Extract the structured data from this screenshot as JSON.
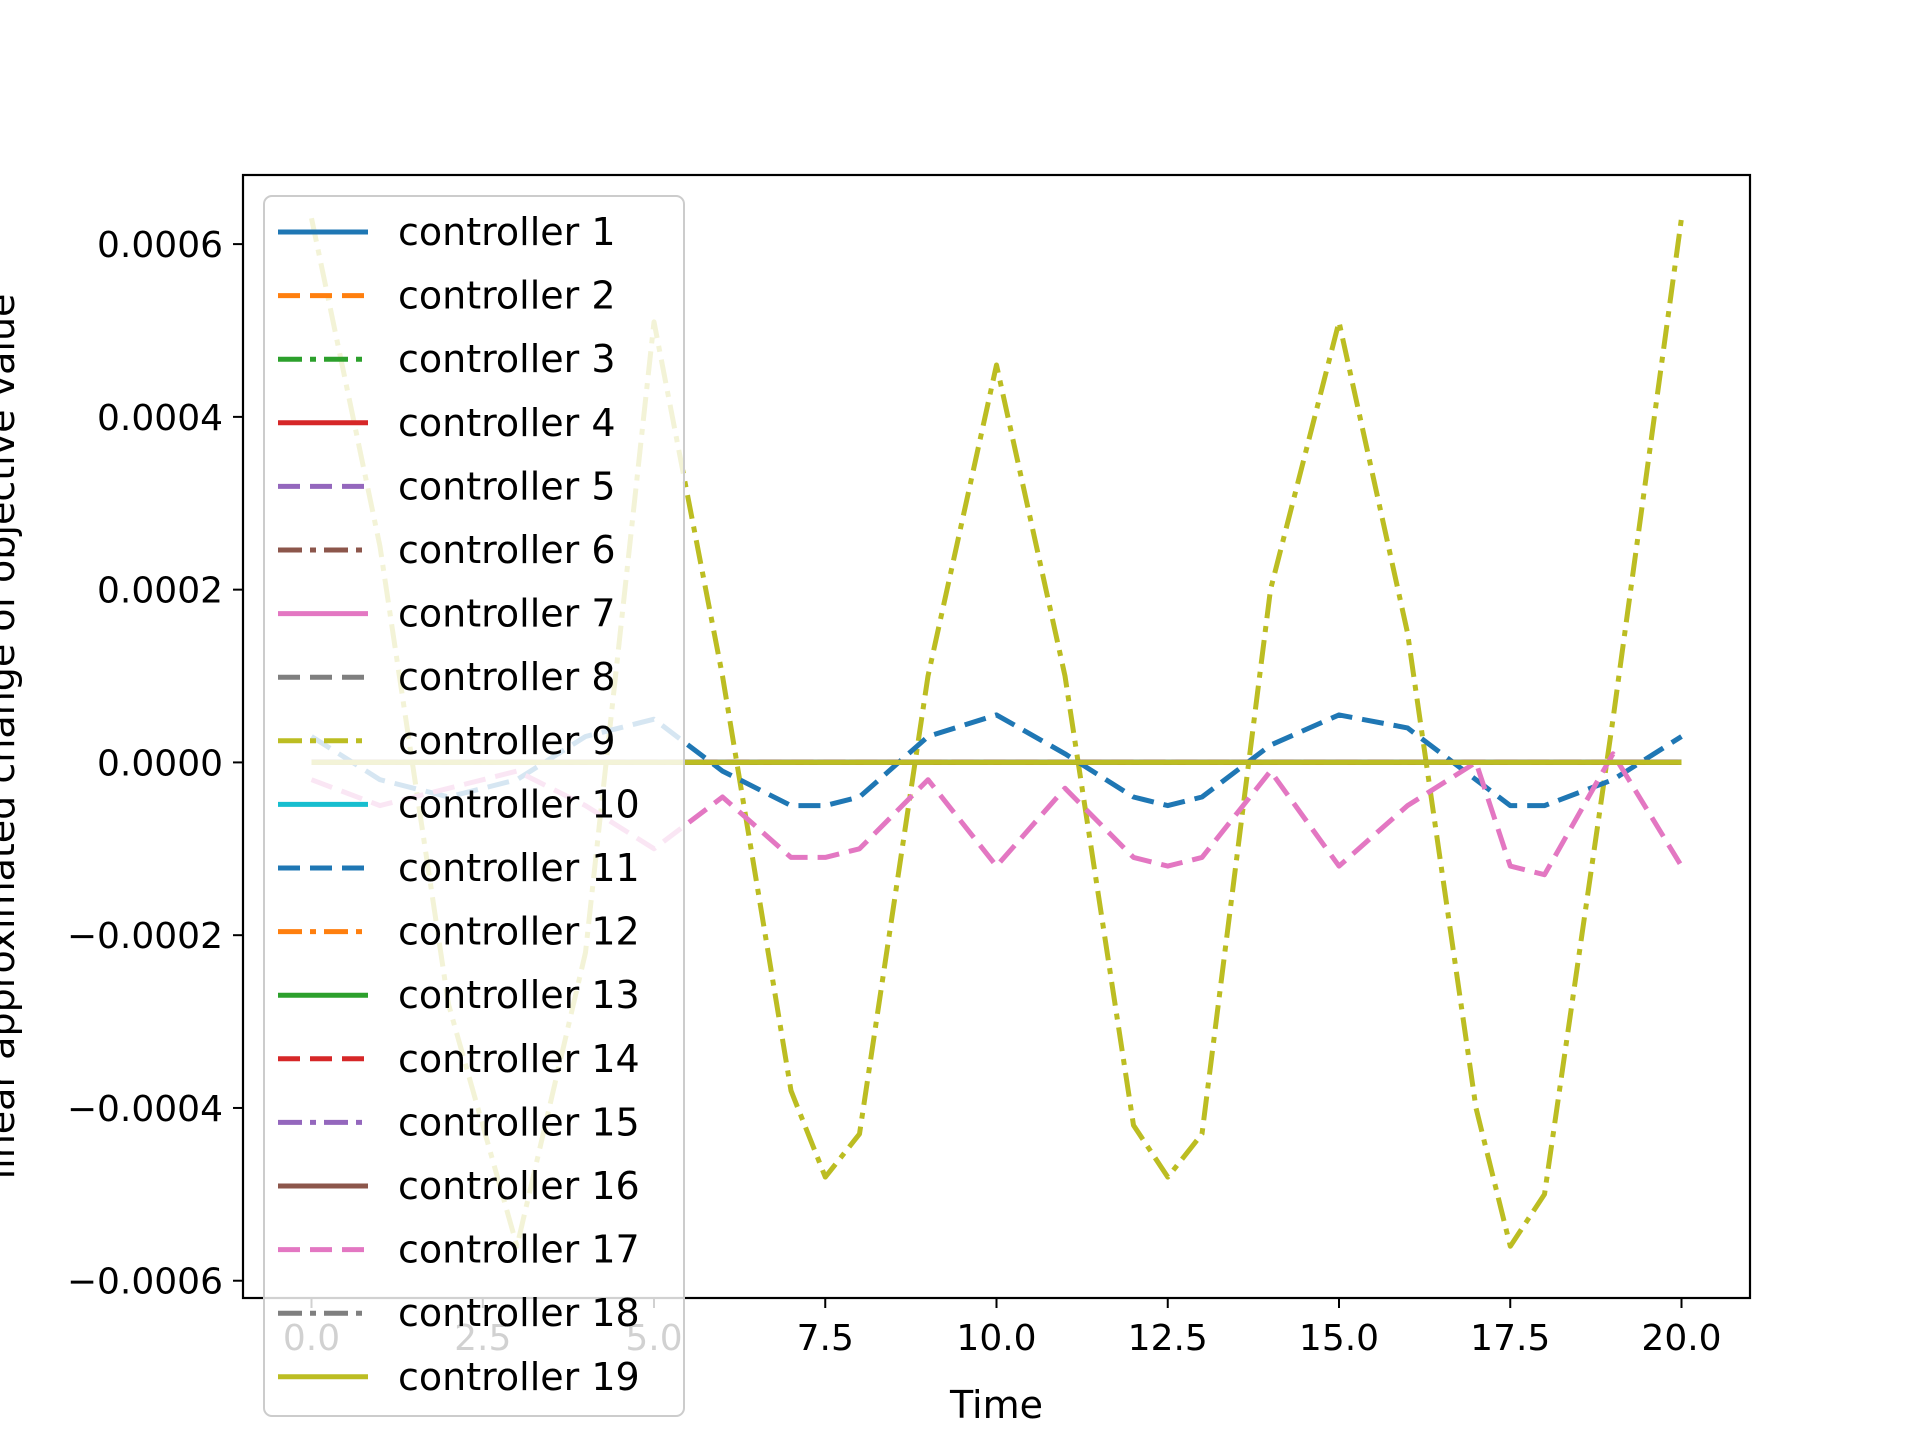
{
  "chart_data": {
    "type": "line",
    "title": "",
    "xlabel": "Time",
    "ylabel": "linear approximated change of objective value",
    "xlim": [
      -1.0,
      21.0
    ],
    "ylim": [
      -0.00062,
      0.00068
    ],
    "xticks": [
      0,
      2.5,
      5,
      7.5,
      10,
      12.5,
      15,
      17.5,
      20
    ],
    "xtick_labels": [
      "0.0",
      "2.5",
      "5.0",
      "7.5",
      "10.0",
      "12.5",
      "15.0",
      "17.5",
      "20.0"
    ],
    "yticks": [
      -0.0006,
      -0.0004,
      -0.0002,
      0,
      0.0002,
      0.0004,
      0.0006
    ],
    "ytick_labels": [
      "−0.0006",
      "−0.0004",
      "−0.0002",
      "0.0000",
      "0.0002",
      "0.0004",
      "0.0006"
    ],
    "grid": false,
    "legend_position": "upper-left",
    "x": [
      0,
      1,
      2,
      3,
      4,
      5,
      6,
      7,
      7.5,
      8,
      9,
      10,
      11,
      12,
      12.5,
      13,
      14,
      15,
      16,
      17,
      17.5,
      18,
      19,
      20
    ],
    "series": [
      {
        "name": "controller 1",
        "color": "#1f77b4",
        "dash": "solid",
        "values": [
          0,
          0,
          0,
          0,
          0,
          0,
          0,
          0,
          0,
          0,
          0,
          0,
          0,
          0,
          0,
          0,
          0,
          0,
          0,
          0,
          0,
          0,
          0,
          0
        ]
      },
      {
        "name": "controller 2",
        "color": "#ff7f0e",
        "dash": "dashed",
        "values": [
          0,
          0,
          0,
          0,
          0,
          0,
          0,
          0,
          0,
          0,
          0,
          0,
          0,
          0,
          0,
          0,
          0,
          0,
          0,
          0,
          0,
          0,
          0,
          0
        ]
      },
      {
        "name": "controller 3",
        "color": "#2ca02c",
        "dash": "dashdot",
        "values": [
          0,
          0,
          0,
          0,
          0,
          0,
          0,
          0,
          0,
          0,
          0,
          0,
          0,
          0,
          0,
          0,
          0,
          0,
          0,
          0,
          0,
          0,
          0,
          0
        ]
      },
      {
        "name": "controller 4",
        "color": "#d62728",
        "dash": "solid",
        "values": [
          0,
          0,
          0,
          0,
          0,
          0,
          0,
          0,
          0,
          0,
          0,
          0,
          0,
          0,
          0,
          0,
          0,
          0,
          0,
          0,
          0,
          0,
          0,
          0
        ]
      },
      {
        "name": "controller 5",
        "color": "#9467bd",
        "dash": "dashed",
        "values": [
          0,
          0,
          0,
          0,
          0,
          0,
          0,
          0,
          0,
          0,
          0,
          0,
          0,
          0,
          0,
          0,
          0,
          0,
          0,
          0,
          0,
          0,
          0,
          0
        ]
      },
      {
        "name": "controller 6",
        "color": "#8c564b",
        "dash": "dashdot",
        "values": [
          0,
          0,
          0,
          0,
          0,
          0,
          0,
          0,
          0,
          0,
          0,
          0,
          0,
          0,
          0,
          0,
          0,
          0,
          0,
          0,
          0,
          0,
          0,
          0
        ]
      },
      {
        "name": "controller 7",
        "color": "#e377c2",
        "dash": "solid",
        "values": [
          0,
          0,
          0,
          0,
          0,
          0,
          0,
          0,
          0,
          0,
          0,
          0,
          0,
          0,
          0,
          0,
          0,
          0,
          0,
          0,
          0,
          0,
          0,
          0
        ]
      },
      {
        "name": "controller 8",
        "color": "#7f7f7f",
        "dash": "dashed",
        "values": [
          0,
          0,
          0,
          0,
          0,
          0,
          0,
          0,
          0,
          0,
          0,
          0,
          0,
          0,
          0,
          0,
          0,
          0,
          0,
          0,
          0,
          0,
          0,
          0
        ]
      },
      {
        "name": "controller 9",
        "color": "#bcbd22",
        "dash": "dashdot",
        "values": [
          0.00063,
          0.00025,
          -0.00028,
          -0.00056,
          -0.00022,
          0.00051,
          0.0001,
          -0.00038,
          -0.00048,
          -0.00043,
          0.0001,
          0.00046,
          0.0001,
          -0.00042,
          -0.00048,
          -0.00043,
          0.0002,
          0.00051,
          0.00015,
          -0.0004,
          -0.00056,
          -0.0005,
          5e-05,
          0.00063
        ]
      },
      {
        "name": "controller 10",
        "color": "#17becf",
        "dash": "solid",
        "values": [
          0,
          0,
          0,
          0,
          0,
          0,
          0,
          0,
          0,
          0,
          0,
          0,
          0,
          0,
          0,
          0,
          0,
          0,
          0,
          0,
          0,
          0,
          0,
          0
        ]
      },
      {
        "name": "controller 11",
        "color": "#1f77b4",
        "dash": "dashed",
        "values": [
          3e-05,
          -2e-05,
          -4e-05,
          -2e-05,
          3e-05,
          5e-05,
          -1e-05,
          -5e-05,
          -5e-05,
          -4e-05,
          3e-05,
          5.5e-05,
          1e-05,
          -4e-05,
          -5e-05,
          -4e-05,
          2e-05,
          5.5e-05,
          4e-05,
          -2e-05,
          -5e-05,
          -5e-05,
          -2e-05,
          3e-05
        ]
      },
      {
        "name": "controller 12",
        "color": "#ff7f0e",
        "dash": "dashdot",
        "values": [
          0,
          0,
          0,
          0,
          0,
          0,
          0,
          0,
          0,
          0,
          0,
          0,
          0,
          0,
          0,
          0,
          0,
          0,
          0,
          0,
          0,
          0,
          0,
          0
        ]
      },
      {
        "name": "controller 13",
        "color": "#2ca02c",
        "dash": "solid",
        "values": [
          0,
          0,
          0,
          0,
          0,
          0,
          0,
          0,
          0,
          0,
          0,
          0,
          0,
          0,
          0,
          0,
          0,
          0,
          0,
          0,
          0,
          0,
          0,
          0
        ]
      },
      {
        "name": "controller 14",
        "color": "#d62728",
        "dash": "dashed",
        "values": [
          0,
          0,
          0,
          0,
          0,
          0,
          0,
          0,
          0,
          0,
          0,
          0,
          0,
          0,
          0,
          0,
          0,
          0,
          0,
          0,
          0,
          0,
          0,
          0
        ]
      },
      {
        "name": "controller 15",
        "color": "#9467bd",
        "dash": "dashdot",
        "values": [
          0,
          0,
          0,
          0,
          0,
          0,
          0,
          0,
          0,
          0,
          0,
          0,
          0,
          0,
          0,
          0,
          0,
          0,
          0,
          0,
          0,
          0,
          0,
          0
        ]
      },
      {
        "name": "controller 16",
        "color": "#8c564b",
        "dash": "solid",
        "values": [
          0,
          0,
          0,
          0,
          0,
          0,
          0,
          0,
          0,
          0,
          0,
          0,
          0,
          0,
          0,
          0,
          0,
          0,
          0,
          0,
          0,
          0,
          0,
          0
        ]
      },
      {
        "name": "controller 17",
        "color": "#e377c2",
        "dash": "dashed",
        "values": [
          -2e-05,
          -5e-05,
          -3e-05,
          -1e-05,
          -5e-05,
          -0.0001,
          -4e-05,
          -0.00011,
          -0.00011,
          -0.0001,
          -2e-05,
          -0.00012,
          -3e-05,
          -0.00011,
          -0.00012,
          -0.00011,
          -1e-05,
          -0.00012,
          -5e-05,
          0.0,
          -0.00012,
          -0.00013,
          1e-05,
          -0.00012
        ]
      },
      {
        "name": "controller 18",
        "color": "#7f7f7f",
        "dash": "dashdot",
        "values": [
          0,
          0,
          0,
          0,
          0,
          0,
          0,
          0,
          0,
          0,
          0,
          0,
          0,
          0,
          0,
          0,
          0,
          0,
          0,
          0,
          0,
          0,
          0,
          0
        ]
      },
      {
        "name": "controller 19",
        "color": "#bcbd22",
        "dash": "solid",
        "values": [
          0,
          0,
          0,
          0,
          0,
          0,
          0,
          0,
          0,
          0,
          0,
          0,
          0,
          0,
          0,
          0,
          0,
          0,
          0,
          0,
          0,
          0,
          0,
          0
        ]
      }
    ]
  }
}
